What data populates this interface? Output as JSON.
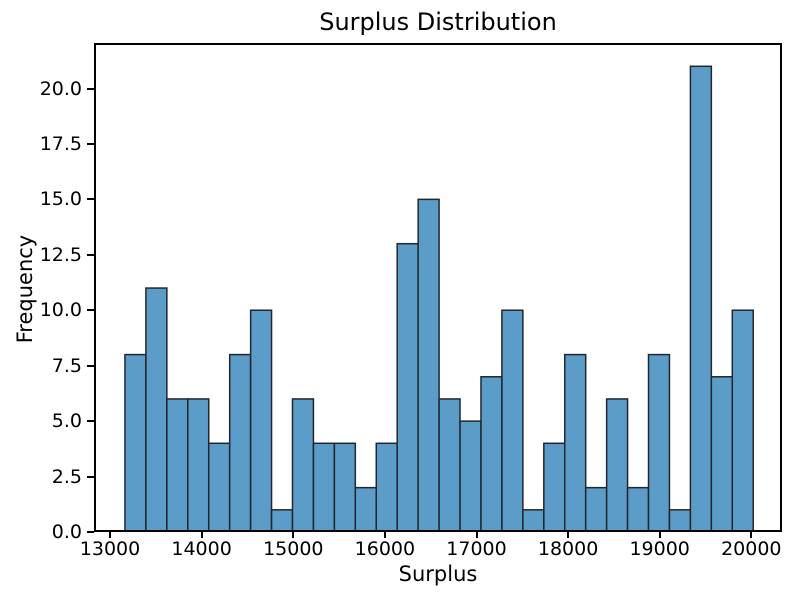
{
  "chart_data": {
    "type": "bar",
    "subtype": "histogram",
    "title": "Surplus Distribution",
    "xlabel": "Surplus",
    "ylabel": "Frequency",
    "bin_start": 13163,
    "bin_width": 228.6,
    "counts": [
      8,
      11,
      6,
      6,
      4,
      8,
      10,
      1,
      6,
      4,
      4,
      2,
      4,
      13,
      15,
      6,
      5,
      7,
      10,
      1,
      4,
      8,
      2,
      6,
      2,
      8,
      1,
      21,
      7,
      10
    ],
    "x_tick_values": [
      13000,
      14000,
      15000,
      16000,
      17000,
      18000,
      19000,
      20000
    ],
    "x_tick_labels": [
      "13000",
      "14000",
      "15000",
      "16000",
      "17000",
      "18000",
      "19000",
      "20000"
    ],
    "y_tick_values": [
      0,
      2.5,
      5,
      7.5,
      10,
      12.5,
      15,
      17.5,
      20
    ],
    "y_tick_labels": [
      "0.0",
      "2.5",
      "5.0",
      "7.5",
      "10.0",
      "12.5",
      "15.0",
      "17.5",
      "20.0"
    ],
    "xlim": [
      12825,
      20335
    ],
    "ylim": [
      0,
      22.05
    ],
    "grid": false,
    "legend_position": "none",
    "colors": {
      "bar_fill": "#5C9CC9",
      "bar_edge": "#23262E",
      "spine": "#000000",
      "text": "#000000",
      "background": "#FFFFFF"
    }
  }
}
